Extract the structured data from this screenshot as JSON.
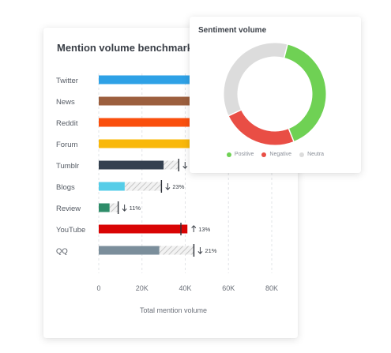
{
  "chart_data": [
    {
      "type": "bar",
      "title": "Mention volume benchmark",
      "xlabel": "Total mention volume",
      "ylabel": "",
      "xlim": [
        0,
        80000
      ],
      "ticks": [
        0,
        20000,
        40000,
        60000,
        80000
      ],
      "tick_labels": [
        "0",
        "20K",
        "40K",
        "60K",
        "80K"
      ],
      "grid": true,
      "categories": [
        "Twitter",
        "News",
        "Reddit",
        "Forum",
        "Tumblr",
        "Blogs",
        "Review",
        "YouTube",
        "QQ"
      ],
      "series": [
        {
          "values": [
            42000,
            42000,
            42000,
            42000,
            30000,
            12000,
            5000,
            41000,
            28000
          ]
        },
        {
          "values": [
            null,
            null,
            null,
            null,
            37000,
            29000,
            9000,
            38000,
            44000
          ]
        }
      ],
      "changes": [
        {
          "direction": "",
          "label": ""
        },
        {
          "direction": "",
          "label": ""
        },
        {
          "direction": "",
          "label": ""
        },
        {
          "direction": "",
          "label": ""
        },
        {
          "direction": "down",
          "label": ""
        },
        {
          "direction": "down",
          "label": "23%"
        },
        {
          "direction": "down",
          "label": "11%"
        },
        {
          "direction": "up",
          "label": "13%"
        },
        {
          "direction": "down",
          "label": "21%"
        }
      ],
      "colors": [
        "#2ea1e6",
        "#9c5f3e",
        "#fa4f0d",
        "#f9b80a",
        "#344050",
        "#56cde8",
        "#2e8c69",
        "#d90404",
        "#7b8e9b"
      ]
    },
    {
      "type": "pie",
      "title": "Sentiment volume",
      "donut": true,
      "categories": [
        "Positive",
        "Negative",
        "Neutral"
      ],
      "values": [
        40,
        24,
        36
      ],
      "colors": [
        "#6fd154",
        "#e94e45",
        "#dcdcdc"
      ],
      "legend_labels": [
        "Positive",
        "Negative",
        "Neutra"
      ],
      "legend_position": "bottom"
    }
  ]
}
